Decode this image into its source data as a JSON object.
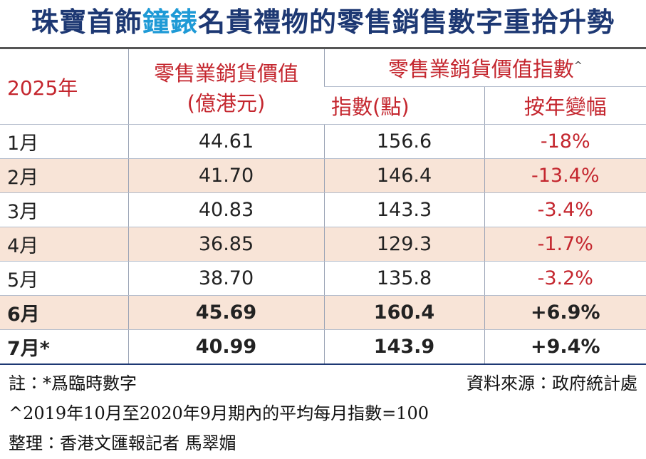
{
  "header": {
    "title_parts": [
      "珠寶首飾",
      "鐘錶",
      "名貴禮物的零售銷售數字重拾升勢"
    ]
  },
  "table": {
    "head": {
      "year": "2025年",
      "value_line1": "零售業銷貨價值",
      "value_line2": "(億港元)",
      "index_group": "零售業銷貨價值指數",
      "index_sup": "^",
      "index": "指數(點)",
      "change": "按年變幅"
    },
    "rows": [
      [
        "1月",
        "44.61",
        "156.6",
        "-18%"
      ],
      [
        "2月",
        "41.70",
        "146.4",
        "-13.4%"
      ],
      [
        "3月",
        "40.83",
        "143.3",
        "-3.4%"
      ],
      [
        "4月",
        "36.85",
        "129.3",
        "-1.7%"
      ],
      [
        "5月",
        "38.70",
        "135.8",
        "-3.2%"
      ],
      [
        "6月",
        "45.69",
        "160.4",
        "+6.9%"
      ],
      [
        "7月*",
        "40.99",
        "143.9",
        "+9.4%"
      ]
    ]
  },
  "footer": {
    "note": "註：*爲臨時數字",
    "source": "資料來源：政府統計處",
    "index_note": "^2019年10月至2020年9月期內的平均每月指數=100",
    "editor": "整理：香港文匯報記者 馬翠媚"
  }
}
